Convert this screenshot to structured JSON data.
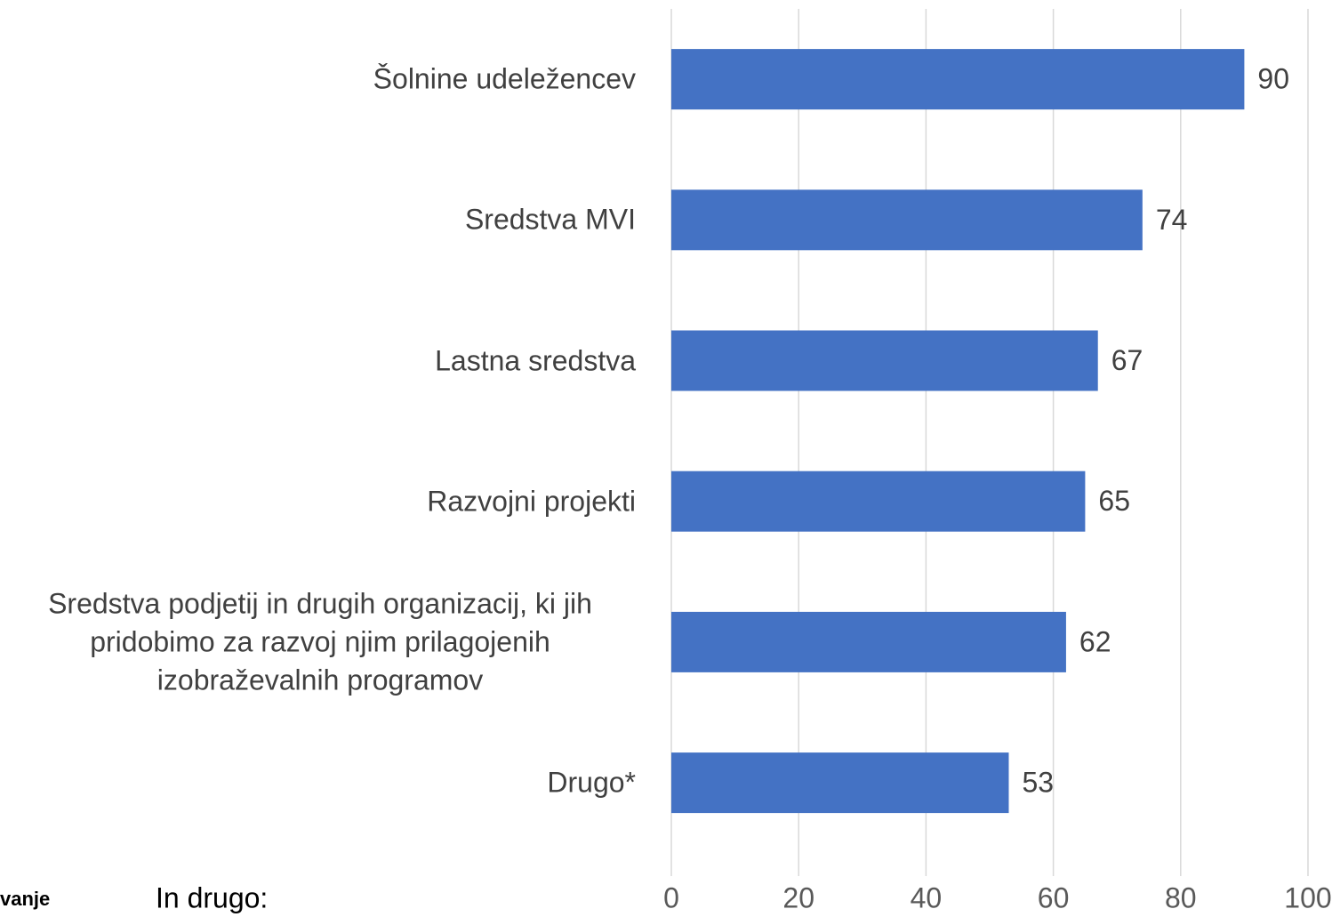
{
  "chart_data": {
    "type": "bar",
    "orientation": "horizontal",
    "categories": [
      "Šolnine udeležencev",
      "Sredstva MVI",
      "Lastna sredstva",
      "Razvojni projekti",
      "Sredstva podjetij in drugih organizacij, ki jih pridobimo za razvoj njim prilagojenih izobraževalnih programov",
      "Drugo*"
    ],
    "values": [
      90,
      74,
      67,
      65,
      62,
      53
    ],
    "color": "#4472c4",
    "xlim": [
      0,
      100
    ],
    "xticks": [
      0,
      20,
      40,
      60,
      80,
      100
    ],
    "grid": true,
    "annotations": [
      "vanje",
      "In drugo:"
    ]
  }
}
